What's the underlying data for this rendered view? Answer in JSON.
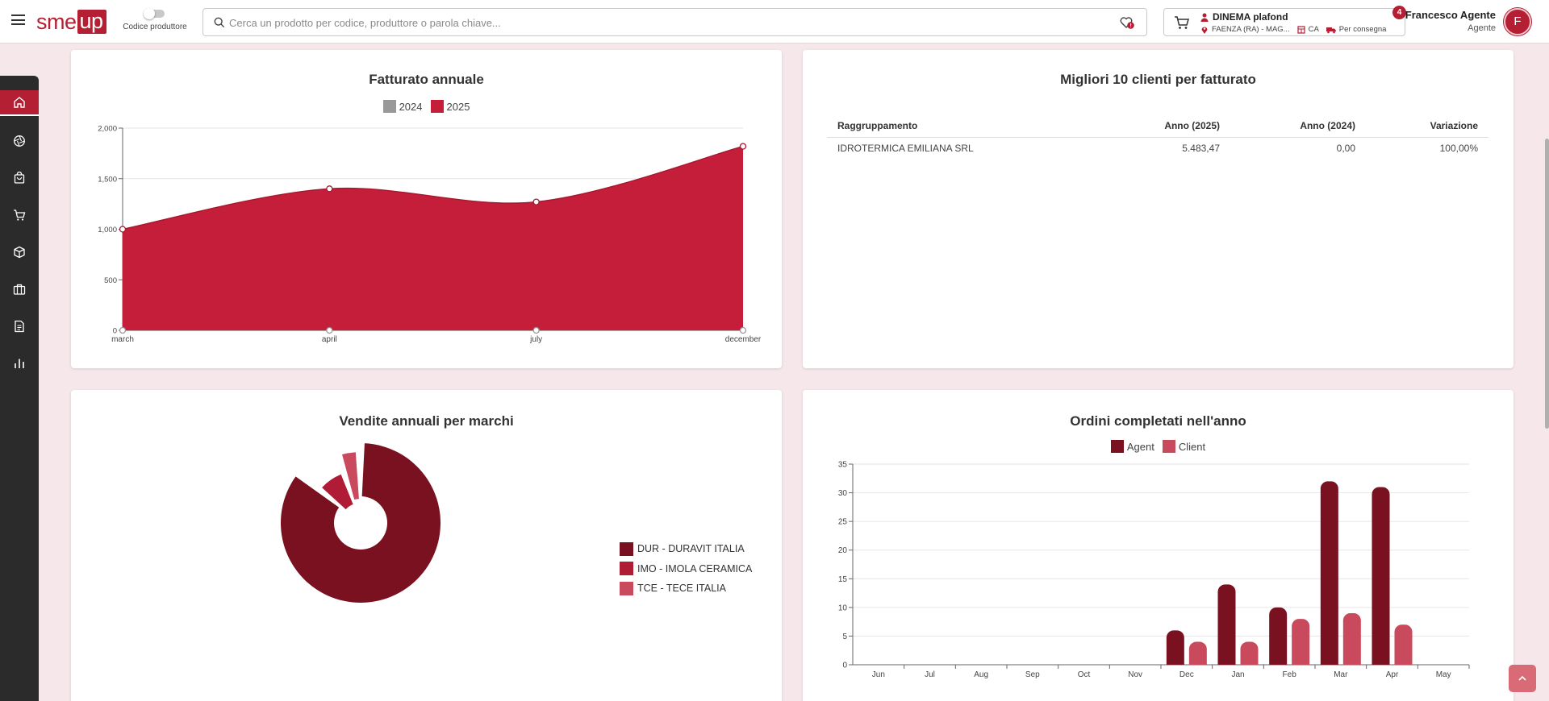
{
  "header": {
    "logo_text_1": "sme",
    "logo_text_2": "up",
    "toggle_label": "Codice produttore",
    "search_placeholder": "Cerca un prodotto per codice, produttore o parola chiave...",
    "cart": {
      "customer": "DINEMA plafond",
      "location": "FAENZA (RA) - MAG...",
      "payment": "CA",
      "delivery": "Per consegna",
      "badge": "4"
    },
    "user": {
      "name": "Francesco Agente",
      "role": "Agente",
      "initial": "F"
    }
  },
  "sidebar": {
    "items": [
      {
        "icon": "home-icon",
        "active": true
      },
      {
        "icon": "aperture-icon",
        "active": false
      },
      {
        "icon": "bag-icon",
        "active": false
      },
      {
        "icon": "cart-icon",
        "active": false
      },
      {
        "icon": "package-icon",
        "active": false
      },
      {
        "icon": "briefcase-icon",
        "active": false
      },
      {
        "icon": "document-icon",
        "active": false
      },
      {
        "icon": "chart-icon",
        "active": false
      }
    ]
  },
  "cards": {
    "revenue": {
      "title": "Fatturato annuale"
    },
    "top_clients": {
      "title": "Migliori 10 clienti per fatturato",
      "columns": [
        "Raggruppamento",
        "Anno (2025)",
        "Anno (2024)",
        "Variazione"
      ],
      "rows": [
        [
          "IDROTERMICA EMILIANA SRL",
          "5.483,47",
          "0,00",
          "100,00%"
        ]
      ]
    },
    "brands": {
      "title": "Vendite annuali per marchi"
    },
    "orders": {
      "title": "Ordini completati nell'anno"
    }
  },
  "colors": {
    "brand": "#b41f34",
    "area_2025": "#c41e3a",
    "gray_2024": "#999999",
    "dark": "#7a1120",
    "mid": "#b01c35",
    "light": "#c94a5c"
  },
  "chart_data": [
    {
      "type": "area",
      "title": "Fatturato annuale",
      "categories": [
        "march",
        "april",
        "july",
        "december"
      ],
      "series": [
        {
          "name": "2024",
          "values": [
            0,
            0,
            0,
            0
          ]
        },
        {
          "name": "2025",
          "values": [
            1000,
            1400,
            1270,
            1820
          ]
        }
      ],
      "yticks": [
        "0",
        "500",
        "1,000",
        "1,500",
        "2,000"
      ],
      "ylim": [
        0,
        2000
      ],
      "legend": "top",
      "grid": true
    },
    {
      "type": "pie",
      "title": "Vendite annuali per marchi",
      "slices": [
        {
          "name": "DUR - DURAVIT ITALIA",
          "value": 86
        },
        {
          "name": "IMO - IMOLA CERAMICA",
          "value": 9
        },
        {
          "name": "TCE - TECE ITALIA",
          "value": 5
        }
      ],
      "legend": "right"
    },
    {
      "type": "bar",
      "title": "Ordini completati nell'anno",
      "categories": [
        "Jun",
        "Jul",
        "Aug",
        "Sep",
        "Oct",
        "Nov",
        "Dec",
        "Jan",
        "Feb",
        "Mar",
        "Apr",
        "May"
      ],
      "series": [
        {
          "name": "Agent",
          "values": [
            0,
            0,
            0,
            0,
            0,
            0,
            6,
            14,
            10,
            32,
            31,
            0
          ]
        },
        {
          "name": "Client",
          "values": [
            0,
            0,
            0,
            0,
            0,
            0,
            4,
            4,
            8,
            9,
            7,
            0
          ]
        }
      ],
      "yticks": [
        "0",
        "5",
        "10",
        "15",
        "20",
        "25",
        "30",
        "35"
      ],
      "ylim": [
        0,
        35
      ],
      "legend": "top",
      "grid": true
    }
  ]
}
